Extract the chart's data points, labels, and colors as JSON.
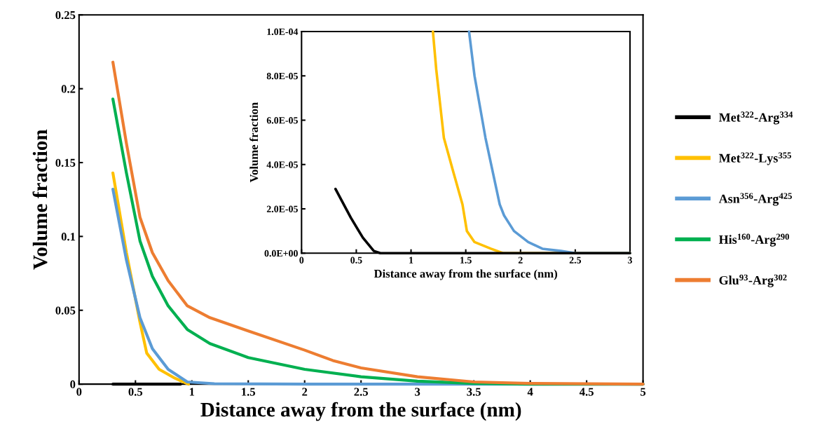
{
  "chart_data": [
    {
      "type": "line",
      "xlabel": "Distance away from the surface (nm)",
      "ylabel": "Volume fraction",
      "xlim": [
        0,
        5
      ],
      "ylim": [
        0,
        0.25
      ],
      "xticks": [
        0,
        0.5,
        1,
        1.5,
        2,
        2.5,
        3,
        3.5,
        4,
        4.5,
        5
      ],
      "yticks": [
        0,
        0.05,
        0.1,
        0.15,
        0.2,
        0.25
      ],
      "legend": "right",
      "grid": false,
      "marker": "none",
      "line_style": "solid",
      "series": [
        {
          "name": "Met$^{322}$-Arg$^{334}$",
          "color": "#000000",
          "x": [
            0.3,
            0.9
          ],
          "values": [
            0,
            0
          ]
        },
        {
          "name": "Met$^{322}$-Lys$^{355}$",
          "color": "#ffc000",
          "x": [
            0.3,
            0.42,
            0.54,
            0.6,
            0.71,
            0.85,
            0.97
          ],
          "values": [
            0.143,
            0.089,
            0.042,
            0.021,
            0.01,
            0.004,
            0
          ]
        },
        {
          "name": "Asn$^{356}$-Arg$^{425}$",
          "color": "#5b9bd5",
          "x": [
            0.3,
            0.42,
            0.54,
            0.65,
            0.79,
            0.96,
            1.2,
            2,
            3,
            4,
            5
          ],
          "values": [
            0.132,
            0.084,
            0.045,
            0.024,
            0.01,
            0.0015,
            0.0003,
            0,
            0,
            0,
            0
          ]
        },
        {
          "name": "His$^{160}$-Arg$^{290}$",
          "color": "#00b050",
          "x": [
            0.3,
            0.42,
            0.54,
            0.65,
            0.79,
            0.96,
            1.16,
            1.5,
            2,
            2.5,
            3,
            3.5,
            4,
            5
          ],
          "values": [
            0.193,
            0.143,
            0.097,
            0.073,
            0.053,
            0.037,
            0.0275,
            0.018,
            0.01,
            0.005,
            0.002,
            0.0005,
            0,
            0
          ]
        },
        {
          "name": "Glu$^{93}$-Arg$^{302}$",
          "color": "#ed7d31",
          "x": [
            0.3,
            0.42,
            0.54,
            0.65,
            0.79,
            0.96,
            1.16,
            1.5,
            2,
            2.25,
            2.5,
            3,
            3.5,
            4,
            5
          ],
          "values": [
            0.218,
            0.163,
            0.113,
            0.089,
            0.07,
            0.053,
            0.045,
            0.036,
            0.023,
            0.016,
            0.011,
            0.005,
            0.0015,
            0.0005,
            0
          ]
        }
      ]
    },
    {
      "type": "line",
      "xlabel": "Distance away from the surface (nm)",
      "ylabel": "Volume fraction",
      "xlim": [
        0,
        3
      ],
      "ylim": [
        0,
        0.0001
      ],
      "xticks": [
        0,
        0.5,
        1,
        1.5,
        2,
        2.5,
        3
      ],
      "yticks": [
        {
          "value": 0,
          "label": "0.0E+00"
        },
        {
          "value": 2e-05,
          "label": "2.0E-05"
        },
        {
          "value": 4e-05,
          "label": "4.0E-05"
        },
        {
          "value": 6e-05,
          "label": "6.0E-05"
        },
        {
          "value": 8e-05,
          "label": "8.0E-05"
        },
        {
          "value": 0.0001,
          "label": "1.0E-04"
        }
      ],
      "legend": false,
      "grid": false,
      "marker": "none",
      "line_style": "solid",
      "series": [
        {
          "color": "#ffc000",
          "x": [
            1.2,
            1.23,
            1.3,
            1.39,
            1.47,
            1.51,
            1.58,
            1.73,
            1.84,
            2.5,
            3
          ],
          "values": [
            0.0001,
            8.3e-05,
            5.2e-05,
            3.6e-05,
            2.2e-05,
            1e-05,
            5e-06,
            2e-06,
            0,
            0,
            0
          ]
        },
        {
          "color": "#5b9bd5",
          "x": [
            1.53,
            1.58,
            1.68,
            1.81,
            1.85,
            1.94,
            2.07,
            2.2,
            2.37,
            2.5,
            3
          ],
          "values": [
            0.0001,
            8e-05,
            5.2e-05,
            2.2e-05,
            1.7e-05,
            1e-05,
            5e-06,
            2e-06,
            1e-06,
            0,
            0
          ]
        },
        {
          "color": "#000000",
          "x": [
            0.31,
            0.45,
            0.56,
            0.66,
            0.72,
            1,
            1.5,
            2,
            2.5,
            3
          ],
          "values": [
            2.9e-05,
            1.6e-05,
            7e-06,
            1e-06,
            0,
            0,
            0,
            0,
            0,
            0
          ]
        }
      ]
    }
  ]
}
